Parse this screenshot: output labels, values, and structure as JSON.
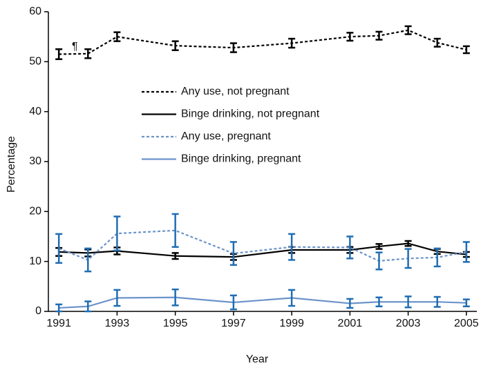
{
  "chart_data": {
    "type": "line",
    "xlabel": "Year",
    "ylabel": "Percentage",
    "annotations": [
      "¶"
    ],
    "x": [
      1991,
      1992,
      1993,
      1995,
      1997,
      1999,
      2001,
      2002,
      2003,
      2004,
      2005
    ],
    "xlim": [
      1990.64,
      2005.36
    ],
    "xticks": [
      1991,
      1993,
      1995,
      1997,
      1999,
      2001,
      2003,
      2005
    ],
    "ylim": [
      0,
      60
    ],
    "yticks": [
      0,
      10,
      20,
      30,
      40,
      50,
      60
    ],
    "legend": "upper center",
    "series": [
      {
        "name": "Any use, not pregnant",
        "color": "#000000",
        "error_color": "#000000",
        "dashed": true,
        "values": [
          51.5,
          51.6,
          55.0,
          53.2,
          52.8,
          53.7,
          55.0,
          55.2,
          56.3,
          53.8,
          52.4
        ],
        "errors": [
          1.0,
          0.9,
          0.9,
          0.9,
          0.9,
          0.9,
          0.8,
          0.8,
          0.8,
          0.8,
          0.7
        ]
      },
      {
        "name": "Binge drinking, not pregnant",
        "color": "#000000",
        "error_color": "#000000",
        "dashed": false,
        "values": [
          11.9,
          11.7,
          12.1,
          11.1,
          10.9,
          12.3,
          12.3,
          13.0,
          13.6,
          12.0,
          11.4
        ],
        "errors": [
          0.8,
          0.7,
          0.7,
          0.6,
          0.6,
          0.6,
          0.6,
          0.5,
          0.5,
          0.5,
          0.5
        ]
      },
      {
        "name": "Any use, pregnant",
        "color": "#6b93c9",
        "error_color": "#1f6db3",
        "dashed": true,
        "values": [
          12.6,
          10.3,
          15.6,
          16.2,
          11.6,
          12.9,
          12.8,
          10.1,
          10.6,
          10.8,
          11.9
        ],
        "errors": [
          2.9,
          2.3,
          3.4,
          3.3,
          2.3,
          2.6,
          2.2,
          1.7,
          1.9,
          1.8,
          2.0
        ]
      },
      {
        "name": "Binge drinking, pregnant",
        "color": "#6b93c9",
        "error_color": "#1f6db3",
        "dashed": false,
        "values": [
          0.7,
          1.0,
          2.7,
          2.8,
          1.8,
          2.7,
          1.6,
          1.9,
          1.9,
          1.9,
          1.7
        ],
        "errors": [
          0.7,
          1.0,
          1.6,
          1.6,
          1.4,
          1.6,
          0.9,
          0.9,
          1.1,
          1.0,
          0.7
        ]
      }
    ]
  }
}
